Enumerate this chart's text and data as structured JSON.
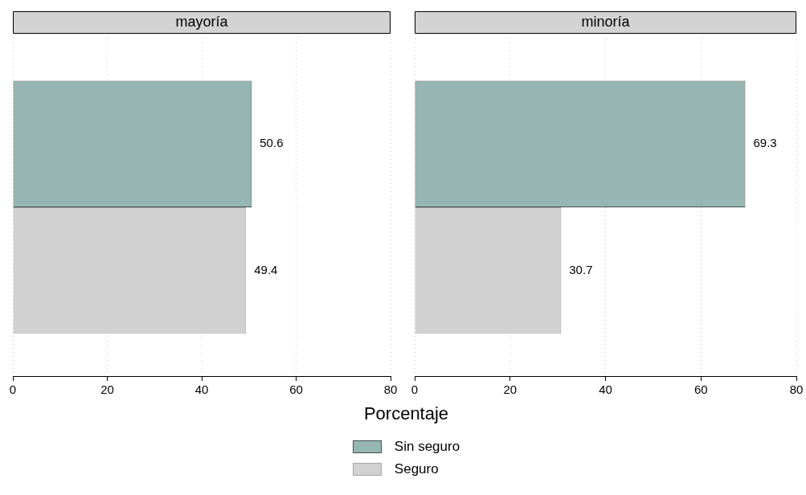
{
  "chart_data": [
    {
      "type": "bar",
      "title": "mayoría",
      "orientation": "horizontal",
      "categories": [
        null
      ],
      "xlabel": "Porcentaje",
      "xlim": [
        0,
        80
      ],
      "xticks": [
        0,
        20,
        40,
        60,
        80
      ],
      "grid": "x",
      "legend": "bottom",
      "data_labels": true,
      "series": [
        {
          "name": "Sin seguro",
          "color": "#97b6b3",
          "values": [
            50.6
          ]
        },
        {
          "name": "Seguro",
          "color": "#d1d1d1",
          "values": [
            49.4
          ]
        }
      ]
    },
    {
      "type": "bar",
      "title": "minoría",
      "orientation": "horizontal",
      "categories": [
        null
      ],
      "xlim": [
        0,
        80
      ],
      "xticks": [
        0,
        20,
        40,
        60,
        80
      ],
      "grid": "x",
      "data_labels": true,
      "series": [
        {
          "color": "#97b6b3",
          "values": [
            69.3
          ]
        },
        {
          "color": "#d1d1d1",
          "values": [
            30.7
          ]
        }
      ]
    }
  ]
}
